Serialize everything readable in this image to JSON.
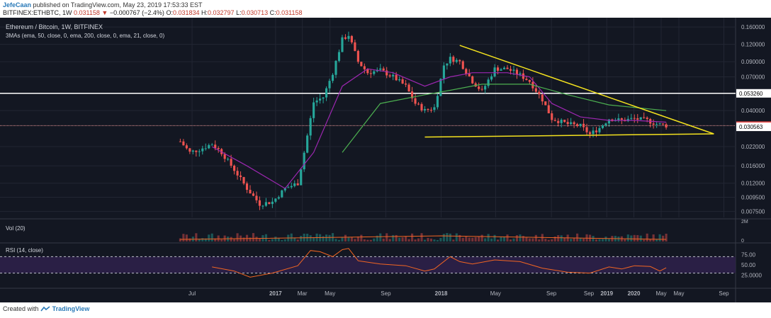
{
  "header": {
    "author": "JefeCaan",
    "published_text": "published on TradingView.com, May 23, 2019 17:53:33 EST",
    "symbol": "BITFINEX:ETHBTC, 1W",
    "last": "0.031158",
    "change_arrow": "▼",
    "change": "−0.000767 (−2.4%)",
    "o_label": "O:",
    "o": "0.031834",
    "h_label": "H:",
    "h": "0.032797",
    "l_label": "L:",
    "l": "0.030713",
    "c_label": "C:",
    "c": "0.031158"
  },
  "footer": {
    "created_with": "Created with",
    "brand": "TradingView",
    "logo_icon": "tradingview-logo-icon"
  },
  "colors": {
    "background": "#131722",
    "grid": "#222633",
    "up": "#26a69a",
    "down": "#ef5350",
    "ma1": "#9c27b0",
    "ma2": "#4caf50",
    "triangle": "#f4e21e",
    "rsi_line": "#f26522",
    "rsi_band": "#2a1f45",
    "hline": "#ffffff",
    "price_line": "#ef9a9a"
  },
  "chart_data": [
    {
      "type": "candlestick",
      "title": "Ethereum / Bitcoin, 1W, BITFINEX",
      "indicator_label": "3MAs (ema, 50, close, 0, ema, 200, close, 0, ema, 21, close, 0)",
      "y_scale": "log",
      "y_ticks": [
        "0.160000",
        "0.120000",
        "0.090000",
        "0.070000",
        "0.040000",
        "0.022000",
        "0.016000",
        "0.012000",
        "0.009500",
        "0.007500"
      ],
      "price_labels": [
        {
          "value": "0.053260",
          "kind": "horizontal-line"
        },
        {
          "value": "0.031158",
          "kind": "last-price"
        },
        {
          "value": "0.030563",
          "kind": "support"
        }
      ],
      "x_ticks": [
        "Jul",
        "2017",
        "Mar",
        "May",
        "Sep",
        "2018",
        "May",
        "Sep",
        "2019",
        "May",
        "Sep",
        "2020",
        "May",
        "Sep"
      ],
      "close_path": [
        [
          "2016-06-05",
          0.024
        ],
        [
          "2016-06-26",
          0.02
        ],
        [
          "2016-07-17",
          0.021
        ],
        [
          "2016-08-14",
          0.023
        ],
        [
          "2016-09-04",
          0.02
        ],
        [
          "2016-10-02",
          0.015
        ],
        [
          "2016-10-30",
          0.011
        ],
        [
          "2016-11-27",
          0.0085
        ],
        [
          "2016-12-25",
          0.0088
        ],
        [
          "2017-01-22",
          0.011
        ],
        [
          "2017-02-19",
          0.012
        ],
        [
          "2017-03-05",
          0.02
        ],
        [
          "2017-03-26",
          0.046
        ],
        [
          "2017-04-16",
          0.05
        ],
        [
          "2017-05-07",
          0.075
        ],
        [
          "2017-05-28",
          0.13
        ],
        [
          "2017-06-11",
          0.14
        ],
        [
          "2017-07-02",
          0.09
        ],
        [
          "2017-07-23",
          0.075
        ],
        [
          "2017-08-20",
          0.078
        ],
        [
          "2017-09-17",
          0.07
        ],
        [
          "2017-10-15",
          0.06
        ],
        [
          "2017-11-05",
          0.045
        ],
        [
          "2017-11-26",
          0.04
        ],
        [
          "2017-12-17",
          0.042
        ],
        [
          "2018-01-07",
          0.085
        ],
        [
          "2018-01-21",
          0.095
        ],
        [
          "2018-02-11",
          0.09
        ],
        [
          "2018-03-11",
          0.065
        ],
        [
          "2018-04-01",
          0.055
        ],
        [
          "2018-04-29",
          0.08
        ],
        [
          "2018-05-27",
          0.08
        ],
        [
          "2018-06-24",
          0.072
        ],
        [
          "2018-07-15",
          0.065
        ],
        [
          "2018-08-12",
          0.048
        ],
        [
          "2018-09-02",
          0.035
        ],
        [
          "2018-10-07",
          0.032
        ],
        [
          "2018-11-04",
          0.031
        ],
        [
          "2018-11-25",
          0.027
        ],
        [
          "2018-12-16",
          0.03
        ],
        [
          "2019-01-06",
          0.035
        ],
        [
          "2019-02-03",
          0.034
        ],
        [
          "2019-03-03",
          0.035
        ],
        [
          "2019-03-31",
          0.034
        ],
        [
          "2019-04-21",
          0.032
        ],
        [
          "2019-05-12",
          0.031158
        ]
      ],
      "ema_21": [
        [
          "2016-08-14",
          0.022
        ],
        [
          "2016-10-30",
          0.016
        ],
        [
          "2017-01-22",
          0.011
        ],
        [
          "2017-03-26",
          0.02
        ],
        [
          "2017-05-28",
          0.06
        ],
        [
          "2017-07-23",
          0.08
        ],
        [
          "2017-09-17",
          0.075
        ],
        [
          "2017-11-26",
          0.06
        ],
        [
          "2018-01-21",
          0.07
        ],
        [
          "2018-03-11",
          0.075
        ],
        [
          "2018-05-27",
          0.075
        ],
        [
          "2018-07-15",
          0.07
        ],
        [
          "2018-09-02",
          0.045
        ],
        [
          "2018-11-04",
          0.036
        ],
        [
          "2019-01-06",
          0.034
        ],
        [
          "2019-03-03",
          0.034
        ],
        [
          "2019-05-12",
          0.033
        ]
      ],
      "ema_50": [
        [
          "2017-05-28",
          0.02
        ],
        [
          "2017-08-20",
          0.045
        ],
        [
          "2017-11-26",
          0.052
        ],
        [
          "2018-01-21",
          0.056
        ],
        [
          "2018-04-01",
          0.062
        ],
        [
          "2018-07-15",
          0.062
        ],
        [
          "2018-10-07",
          0.052
        ],
        [
          "2019-01-06",
          0.044
        ],
        [
          "2019-05-12",
          0.04
        ]
      ],
      "triangle": {
        "upper": [
          [
            "2018-02-11",
            0.118
          ],
          [
            "2019-07-28",
            0.027
          ]
        ],
        "lower": [
          [
            "2017-11-26",
            0.0258
          ],
          [
            "2019-08-25",
            0.0272
          ]
        ],
        "apex": [
          "2019-08-25",
          0.0272
        ]
      },
      "horizontal_line": 0.05326
    },
    {
      "type": "bar",
      "title": "Vol (20)",
      "y_ticks": [
        "2M",
        "0"
      ]
    },
    {
      "type": "line",
      "title": "RSI (14, close)",
      "y_ticks": [
        "75.00",
        "50.00",
        "25.0000"
      ],
      "bands": [
        30,
        70
      ],
      "values": [
        [
          "2016-08-14",
          45
        ],
        [
          "2016-10-02",
          35
        ],
        [
          "2016-11-06",
          20
        ],
        [
          "2016-12-25",
          30
        ],
        [
          "2017-02-19",
          48
        ],
        [
          "2017-03-19",
          85
        ],
        [
          "2017-04-09",
          82
        ],
        [
          "2017-05-07",
          70
        ],
        [
          "2017-05-28",
          87
        ],
        [
          "2017-06-11",
          90
        ],
        [
          "2017-07-02",
          60
        ],
        [
          "2017-08-20",
          52
        ],
        [
          "2017-10-15",
          48
        ],
        [
          "2017-11-26",
          35
        ],
        [
          "2017-12-17",
          40
        ],
        [
          "2018-01-21",
          70
        ],
        [
          "2018-02-11",
          58
        ],
        [
          "2018-03-11",
          52
        ],
        [
          "2018-04-29",
          62
        ],
        [
          "2018-06-24",
          58
        ],
        [
          "2018-08-12",
          42
        ],
        [
          "2018-10-07",
          32
        ],
        [
          "2018-11-25",
          30
        ],
        [
          "2019-01-06",
          45
        ],
        [
          "2019-02-03",
          40
        ],
        [
          "2019-03-03",
          48
        ],
        [
          "2019-04-07",
          46
        ],
        [
          "2019-04-28",
          35
        ],
        [
          "2019-05-12",
          43
        ]
      ]
    }
  ]
}
